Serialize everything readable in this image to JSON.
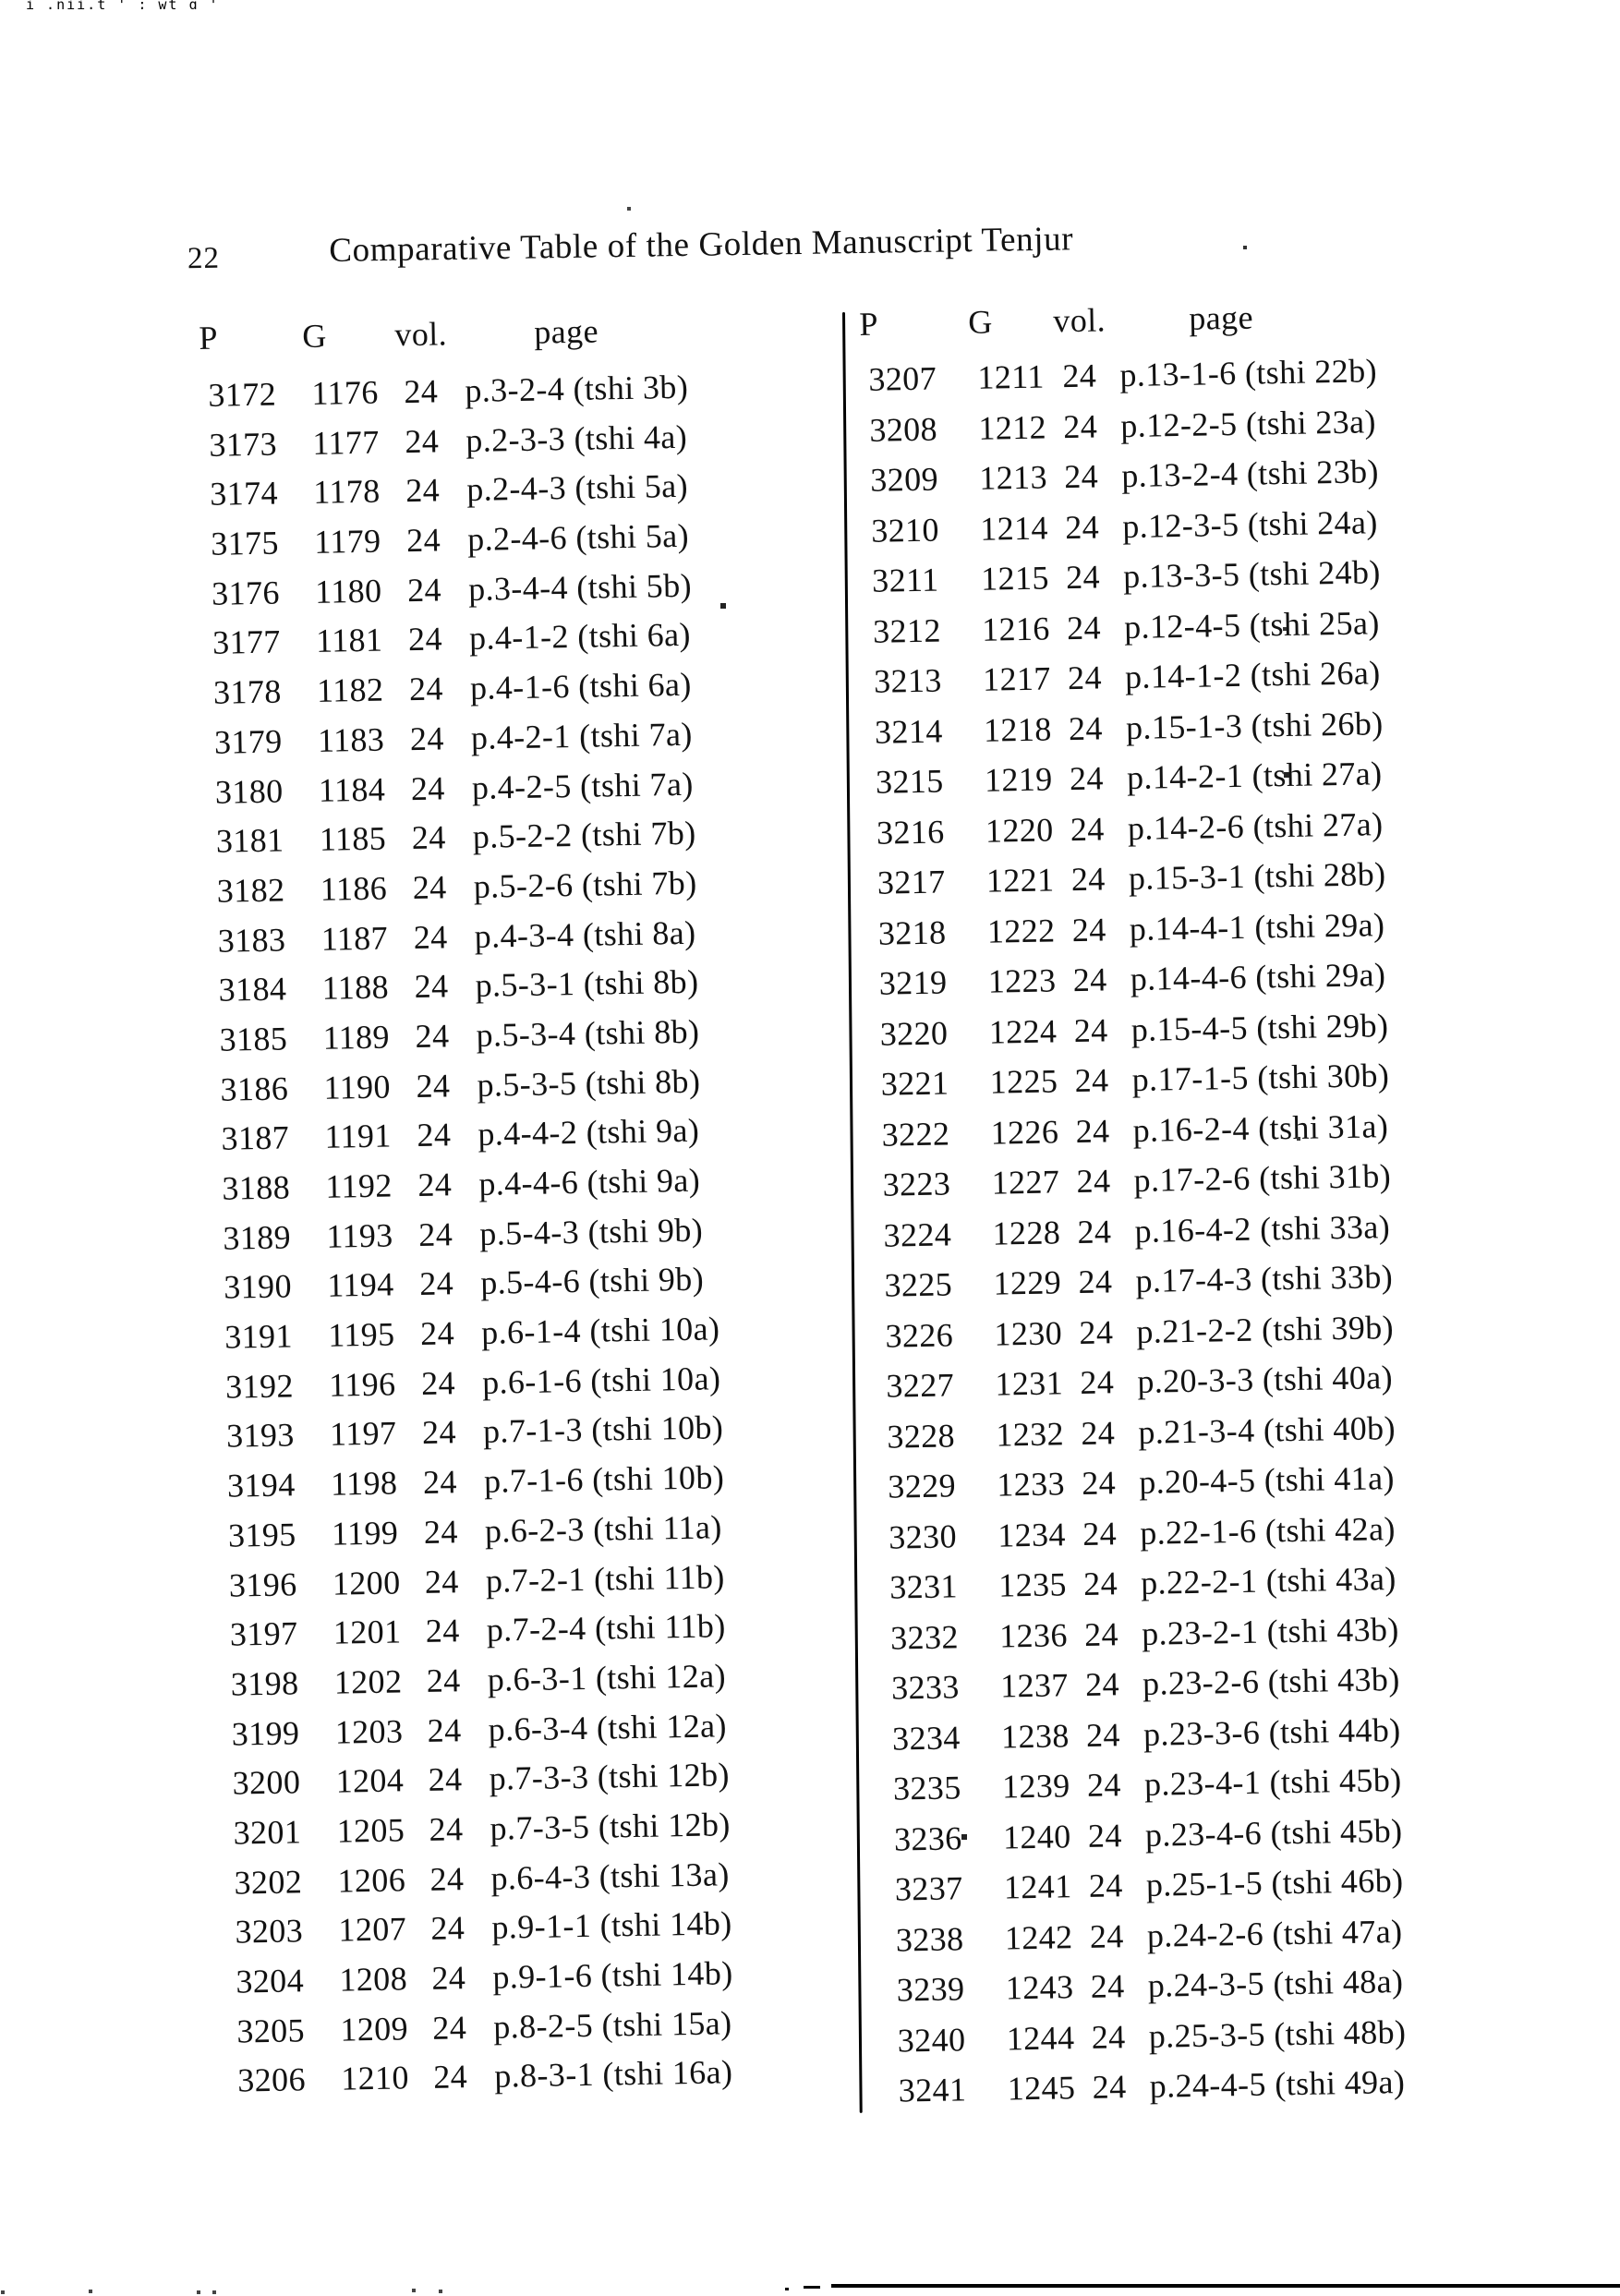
{
  "page": {
    "number": "22",
    "title": "Comparative Table of the Golden Manuscript Tenjur",
    "top_edge_fragment": "i .nii.t ' ; wt q '"
  },
  "columns": {
    "p": "P",
    "g": "G",
    "vol": "vol.",
    "page": "page"
  },
  "table_left": {
    "rows": [
      [
        "3172",
        "1176",
        "24",
        "p.3-2-4 (tshi 3b)"
      ],
      [
        "3173",
        "1177",
        "24",
        "p.2-3-3 (tshi 4a)"
      ],
      [
        "3174",
        "1178",
        "24",
        "p.2-4-3 (tshi 5a)"
      ],
      [
        "3175",
        "1179",
        "24",
        "p.2-4-6 (tshi 5a)"
      ],
      [
        "3176",
        "1180",
        "24",
        "p.3-4-4 (tshi 5b)"
      ],
      [
        "3177",
        "1181",
        "24",
        "p.4-1-2 (tshi 6a)"
      ],
      [
        "3178",
        "1182",
        "24",
        "p.4-1-6 (tshi 6a)"
      ],
      [
        "3179",
        "1183",
        "24",
        "p.4-2-1 (tshi 7a)"
      ],
      [
        "3180",
        "1184",
        "24",
        "p.4-2-5 (tshi 7a)"
      ],
      [
        "3181",
        "1185",
        "24",
        "p.5-2-2 (tshi 7b)"
      ],
      [
        "3182",
        "1186",
        "24",
        "p.5-2-6 (tshi 7b)"
      ],
      [
        "3183",
        "1187",
        "24",
        "p.4-3-4 (tshi 8a)"
      ],
      [
        "3184",
        "1188",
        "24",
        "p.5-3-1 (tshi 8b)"
      ],
      [
        "3185",
        "1189",
        "24",
        "p.5-3-4 (tshi 8b)"
      ],
      [
        "3186",
        "1190",
        "24",
        "p.5-3-5 (tshi 8b)"
      ],
      [
        "3187",
        "1191",
        "24",
        "p.4-4-2 (tshi 9a)"
      ],
      [
        "3188",
        "1192",
        "24",
        "p.4-4-6 (tshi 9a)"
      ],
      [
        "3189",
        "1193",
        "24",
        "p.5-4-3 (tshi 9b)"
      ],
      [
        "3190",
        "1194",
        "24",
        "p.5-4-6 (tshi 9b)"
      ],
      [
        "3191",
        "1195",
        "24",
        "p.6-1-4 (tshi 10a)"
      ],
      [
        "3192",
        "1196",
        "24",
        "p.6-1-6 (tshi 10a)"
      ],
      [
        "3193",
        "1197",
        "24",
        "p.7-1-3 (tshi 10b)"
      ],
      [
        "3194",
        "1198",
        "24",
        "p.7-1-6 (tshi 10b)"
      ],
      [
        "3195",
        "1199",
        "24",
        "p.6-2-3 (tshi 11a)"
      ],
      [
        "3196",
        "1200",
        "24",
        "p.7-2-1 (tshi 11b)"
      ],
      [
        "3197",
        "1201",
        "24",
        "p.7-2-4 (tshi 11b)"
      ],
      [
        "3198",
        "1202",
        "24",
        "p.6-3-1 (tshi 12a)"
      ],
      [
        "3199",
        "1203",
        "24",
        "p.6-3-4 (tshi 12a)"
      ],
      [
        "3200",
        "1204",
        "24",
        "p.7-3-3 (tshi 12b)"
      ],
      [
        "3201",
        "1205",
        "24",
        "p.7-3-5 (tshi 12b)"
      ],
      [
        "3202",
        "1206",
        "24",
        "p.6-4-3 (tshi 13a)"
      ],
      [
        "3203",
        "1207",
        "24",
        "p.9-1-1 (tshi 14b)"
      ],
      [
        "3204",
        "1208",
        "24",
        "p.9-1-6 (tshi 14b)"
      ],
      [
        "3205",
        "1209",
        "24",
        "p.8-2-5 (tshi 15a)"
      ],
      [
        "3206",
        "1210",
        "24",
        "p.8-3-1 (tshi 16a)"
      ]
    ]
  },
  "table_right": {
    "rows": [
      [
        "3207",
        "1211",
        "24",
        "p.13-1-6 (tshi 22b)"
      ],
      [
        "3208",
        "1212",
        "24",
        "p.12-2-5 (tshi 23a)"
      ],
      [
        "3209",
        "1213",
        "24",
        "p.13-2-4 (tshi 23b)"
      ],
      [
        "3210",
        "1214",
        "24",
        "p.12-3-5 (tshi 24a)"
      ],
      [
        "3211",
        "1215",
        "24",
        "p.13-3-5 (tshi 24b)"
      ],
      [
        "3212",
        "1216",
        "24",
        "p.12-4-5 (tshi 25a)"
      ],
      [
        "3213",
        "1217",
        "24",
        "p.14-1-2 (tshi 26a)"
      ],
      [
        "3214",
        "1218",
        "24",
        "p.15-1-3 (tshi 26b)"
      ],
      [
        "3215",
        "1219",
        "24",
        "p.14-2-1 (tshi 27a)"
      ],
      [
        "3216",
        "1220",
        "24",
        "p.14-2-6 (tshi 27a)"
      ],
      [
        "3217",
        "1221",
        "24",
        "p.15-3-1 (tshi 28b)"
      ],
      [
        "3218",
        "1222",
        "24",
        "p.14-4-1 (tshi 29a)"
      ],
      [
        "3219",
        "1223",
        "24",
        "p.14-4-6 (tshi 29a)"
      ],
      [
        "3220",
        "1224",
        "24",
        "p.15-4-5 (tshi 29b)"
      ],
      [
        "3221",
        "1225",
        "24",
        "p.17-1-5 (tshi 30b)"
      ],
      [
        "3222",
        "1226",
        "24",
        "p.16-2-4 (tshi 31a)"
      ],
      [
        "3223",
        "1227",
        "24",
        "p.17-2-6 (tshi 31b)"
      ],
      [
        "3224",
        "1228",
        "24",
        "p.16-4-2 (tshi 33a)"
      ],
      [
        "3225",
        "1229",
        "24",
        "p.17-4-3 (tshi 33b)"
      ],
      [
        "3226",
        "1230",
        "24",
        "p.21-2-2 (tshi 39b)"
      ],
      [
        "3227",
        "1231",
        "24",
        "p.20-3-3 (tshi 40a)"
      ],
      [
        "3228",
        "1232",
        "24",
        "p.21-3-4 (tshi 40b)"
      ],
      [
        "3229",
        "1233",
        "24",
        "p.20-4-5 (tshi 41a)"
      ],
      [
        "3230",
        "1234",
        "24",
        "p.22-1-6 (tshi 42a)"
      ],
      [
        "3231",
        "1235",
        "24",
        "p.22-2-1 (tshi 43a)"
      ],
      [
        "3232",
        "1236",
        "24",
        "p.23-2-1 (tshi 43b)"
      ],
      [
        "3233",
        "1237",
        "24",
        "p.23-2-6 (tshi 43b)"
      ],
      [
        "3234",
        "1238",
        "24",
        "p.23-3-6 (tshi 44b)"
      ],
      [
        "3235",
        "1239",
        "24",
        "p.23-4-1 (tshi 45b)"
      ],
      [
        "3236",
        "1240",
        "24",
        "p.23-4-6 (tshi 45b)"
      ],
      [
        "3237",
        "1241",
        "24",
        "p.25-1-5 (tshi 46b)"
      ],
      [
        "3238",
        "1242",
        "24",
        "p.24-2-6 (tshi 47a)"
      ],
      [
        "3239",
        "1243",
        "24",
        "p.24-3-5 (tshi 48a)"
      ],
      [
        "3240",
        "1244",
        "24",
        "p.25-3-5 (tshi 48b)"
      ],
      [
        "3241",
        "1245",
        "24",
        "p.24-4-5 (tshi 49a)"
      ]
    ]
  }
}
